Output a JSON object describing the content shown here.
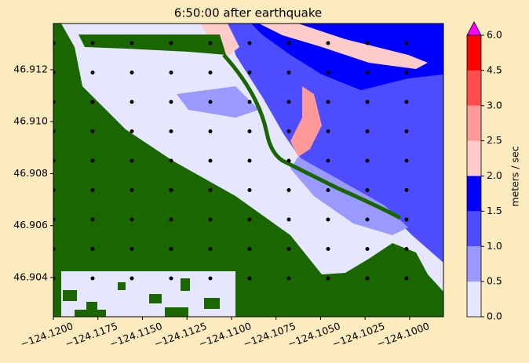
{
  "chart_data": {
    "type": "contour",
    "title": "6:50:00 after earthquake",
    "xlim": [
      -124.12,
      -124.0981
    ],
    "ylim": [
      46.90249,
      46.91378
    ],
    "xticks": [
      {
        "value": -124.12,
        "label": "−124.1200"
      },
      {
        "value": -124.1175,
        "label": "−124.1175"
      },
      {
        "value": -124.115,
        "label": "−124.1150"
      },
      {
        "value": -124.1125,
        "label": "−124.1125"
      },
      {
        "value": -124.11,
        "label": "−124.1100"
      },
      {
        "value": -124.1075,
        "label": "−124.1075"
      },
      {
        "value": -124.105,
        "label": "−124.1050"
      },
      {
        "value": -124.1025,
        "label": "−124.1025"
      },
      {
        "value": -124.1,
        "label": "−124.1000"
      }
    ],
    "yticks": [
      46.904,
      46.906,
      46.908,
      {
        "value": 46.91,
        "label": "46.910"
      },
      46.912
    ],
    "colorbar": {
      "label": "meters / sec",
      "ticks": [
        {
          "value": 0,
          "label": "0.0"
        },
        {
          "value": 0.5,
          "label": "0.5"
        },
        {
          "value": 1,
          "label": "1.0"
        },
        {
          "value": 1.5,
          "label": "1.5"
        },
        {
          "value": 2,
          "label": "2.0"
        },
        {
          "value": 2.5,
          "label": "2.5"
        },
        {
          "value": 3,
          "label": "3.0"
        },
        {
          "value": 4.5,
          "label": "4.5"
        },
        {
          "value": 6,
          "label": "6.0"
        }
      ],
      "colors": [
        "#e6e6ff",
        "#9999ff",
        "#4d4dff",
        "#0000ff",
        "#ffcccc",
        "#ff9999",
        "#ff4d4d",
        "#ff0000"
      ],
      "extend_color": "#ff00ff"
    }
  }
}
